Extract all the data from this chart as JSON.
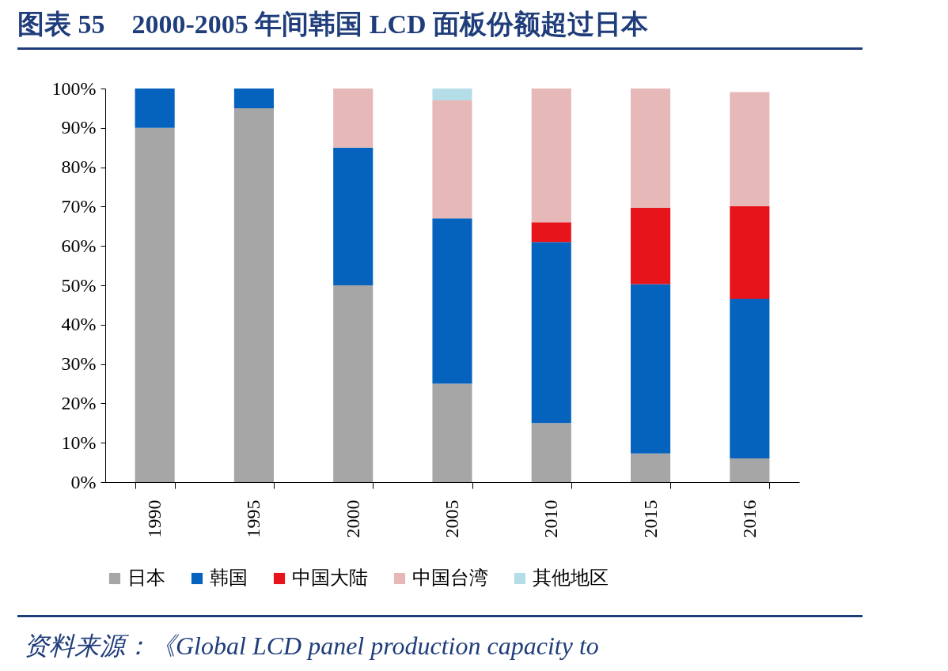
{
  "chart_data": {
    "type": "bar",
    "title": "图表 55　2000-2005 年间韩国 LCD 面板份额超过日本",
    "categories": [
      "1990",
      "1995",
      "2000",
      "2005",
      "2010",
      "2015",
      "2016"
    ],
    "stacked": true,
    "series": [
      {
        "name": "日本",
        "color": "#a6a6a6",
        "values": [
          90,
          95,
          50,
          25,
          15,
          7.3,
          6
        ]
      },
      {
        "name": "韩国",
        "color": "#0563be",
        "values": [
          10,
          5,
          35,
          42,
          46,
          43,
          40.6
        ]
      },
      {
        "name": "中国大陆",
        "color": "#e8141c",
        "values": [
          null,
          null,
          null,
          null,
          5,
          19.4,
          23.5
        ]
      },
      {
        "name": "中国台湾",
        "color": "#e6b8b8",
        "values": [
          null,
          null,
          15,
          30,
          34,
          30.3,
          29
        ]
      },
      {
        "name": "其他地区",
        "color": "#b4dde8",
        "values": [
          null,
          null,
          null,
          3,
          null,
          null,
          null
        ]
      }
    ],
    "ylim": [
      0,
      100
    ],
    "yticks": [
      {
        "value": 0,
        "label": "0%"
      },
      {
        "value": 10,
        "label": "10%"
      },
      {
        "value": 20,
        "label": "20%"
      },
      {
        "value": 30,
        "label": "30%"
      },
      {
        "value": 40,
        "label": "40%"
      },
      {
        "value": 50,
        "label": "50%"
      },
      {
        "value": 60,
        "label": "60%"
      },
      {
        "value": 70,
        "label": "70%"
      },
      {
        "value": 80,
        "label": "80%"
      },
      {
        "value": 90,
        "label": "90%"
      },
      {
        "value": 100,
        "label": "100%"
      }
    ],
    "grid": false,
    "legend": "bottom",
    "annotations": [
      "资料来源：《Global LCD panel production capacity to"
    ]
  }
}
